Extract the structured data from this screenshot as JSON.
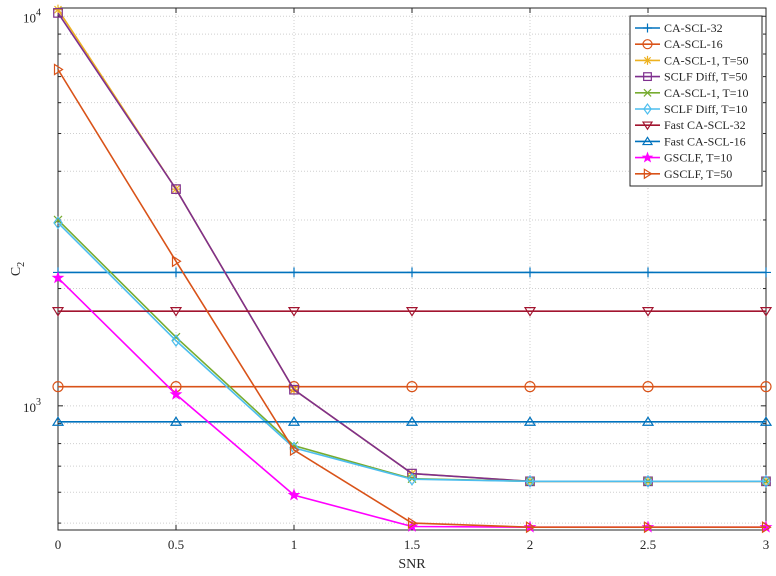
{
  "chart_data": {
    "type": "line",
    "title": "",
    "xlabel": "SNR",
    "ylabel": "C",
    "ylabel_subscript": "2",
    "xlim": [
      0,
      3
    ],
    "ylim": [
      480,
      10500
    ],
    "yscale": "log",
    "grid": true,
    "grid_style": "dotted",
    "legend_position": "top-right",
    "x": [
      0,
      0.5,
      1,
      1.5,
      2,
      2.5,
      3
    ],
    "x_tick_labels": [
      "0",
      "0.5",
      "1",
      "1.5",
      "2",
      "2.5",
      "3"
    ],
    "y_tick_labels": [
      {
        "value": 1000,
        "base": "10",
        "exponent": "3"
      },
      {
        "value": 10000,
        "base": "10",
        "exponent": "4"
      }
    ],
    "series": [
      {
        "name": "CA-SCL-32",
        "color": "#0072BD",
        "marker": "plus",
        "values": [
          2200,
          2200,
          2200,
          2200,
          2200,
          2200,
          2200
        ]
      },
      {
        "name": "CA-SCL-16",
        "color": "#D95319",
        "marker": "circle",
        "values": [
          1120,
          1120,
          1120,
          1120,
          1120,
          1120,
          1120
        ]
      },
      {
        "name": "CA-SCL-1, T=50",
        "color": "#EDB120",
        "marker": "asterisk",
        "values": [
          10400,
          3600,
          1100,
          670,
          640,
          640,
          640
        ]
      },
      {
        "name": "SCLF Diff, T=50",
        "color": "#7E2F8E",
        "marker": "square",
        "values": [
          10200,
          3600,
          1100,
          670,
          640,
          640,
          640
        ]
      },
      {
        "name": "CA-SCL-1, T=10",
        "color": "#77AC30",
        "marker": "x",
        "values": [
          3000,
          1500,
          790,
          650,
          640,
          640,
          640
        ]
      },
      {
        "name": "SCLF Diff, T=10",
        "color": "#4DBEEE",
        "marker": "diamond",
        "values": [
          2950,
          1470,
          780,
          648,
          640,
          640,
          640
        ]
      },
      {
        "name": "Fast CA-SCL-32",
        "color": "#A2142F",
        "marker": "triangle-down",
        "values": [
          1750,
          1750,
          1750,
          1750,
          1750,
          1750,
          1750
        ]
      },
      {
        "name": "Fast CA-SCL-16",
        "color": "#0072BD",
        "marker": "triangle-up",
        "values": [
          910,
          910,
          910,
          910,
          910,
          910,
          910
        ]
      },
      {
        "name": "GSCLF, T=10",
        "color": "#FF00FF",
        "marker": "pentagram",
        "values": [
          2130,
          1070,
          590,
          490,
          488,
          488,
          488
        ]
      },
      {
        "name": "GSCLF, T=50",
        "color": "#D95319",
        "marker": "triangle-right",
        "values": [
          7300,
          2350,
          770,
          500,
          488,
          488,
          488
        ]
      }
    ]
  }
}
